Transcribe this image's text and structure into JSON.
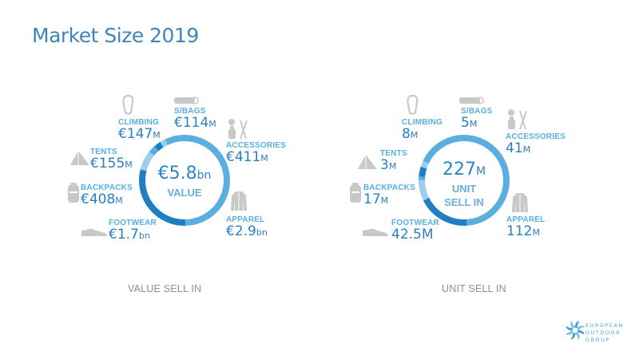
{
  "title": "Market Size 2019",
  "colors": {
    "dark": "#1f7fc2",
    "mid": "#5aaee0",
    "light": "#9fcdee",
    "icon": "#c8c8c8",
    "text": "#2a7fbf"
  },
  "chart_data": [
    {
      "type": "pie",
      "name": "value",
      "caption": "VALUE SELL IN",
      "center_value": "€5.8",
      "center_unit": "bn",
      "center_label": "VALUE",
      "unit": "€M",
      "total": 5800,
      "categories": [
        "APPAREL",
        "FOOTWEAR",
        "BACKPACKS",
        "TENTS",
        "CLIMBING",
        "S/BAGS",
        "ACCESSORIES"
      ],
      "values": [
        2900,
        1700,
        408,
        155,
        147,
        114,
        411
      ],
      "labels": [
        {
          "cat": "CLIMBING",
          "num": "€147",
          "unit": "M",
          "icon": "carabiner-icon"
        },
        {
          "cat": "S/BAGS",
          "num": "€114",
          "unit": "M",
          "icon": "sleeping-bag-icon"
        },
        {
          "cat": "ACCESSORIES",
          "num": "€411",
          "unit": "M",
          "icon": "accessories-icon"
        },
        {
          "cat": "TENTS",
          "num": "€155",
          "unit": "M",
          "icon": "tent-icon"
        },
        {
          "cat": "BACKPACKS",
          "num": "€408",
          "unit": "M",
          "icon": "backpack-icon"
        },
        {
          "cat": "FOOTWEAR",
          "num": "€1.7",
          "unit": "bn",
          "icon": "shoe-icon"
        },
        {
          "cat": "APPAREL",
          "num": "€2.9",
          "unit": "bn",
          "icon": "jacket-icon"
        }
      ]
    },
    {
      "type": "pie",
      "name": "unit",
      "caption": "UNIT SELL IN",
      "center_value": "227",
      "center_unit": "M",
      "center_label": "UNIT",
      "center_label2": "SELL IN",
      "unit": "M units",
      "total": 227,
      "categories": [
        "APPAREL",
        "FOOTWEAR",
        "BACKPACKS",
        "TENTS",
        "CLIMBING",
        "S/BAGS",
        "ACCESSORIES"
      ],
      "values": [
        112,
        42.5,
        17,
        3,
        8,
        5,
        41
      ],
      "labels": [
        {
          "cat": "CLIMBING",
          "num": "8",
          "unit": "M",
          "icon": "carabiner-icon"
        },
        {
          "cat": "S/BAGS",
          "num": "5",
          "unit": "M",
          "icon": "sleeping-bag-icon"
        },
        {
          "cat": "ACCESSORIES",
          "num": "41",
          "unit": "M",
          "icon": "accessories-icon"
        },
        {
          "cat": "TENTS",
          "num": "3",
          "unit": "M",
          "icon": "tent-icon"
        },
        {
          "cat": "BACKPACKS",
          "num": "17",
          "unit": "M",
          "icon": "backpack-icon"
        },
        {
          "cat": "FOOTWEAR",
          "num": "42.5M",
          "unit": "",
          "icon": "shoe-icon"
        },
        {
          "cat": "APPAREL",
          "num": "112",
          "unit": "M",
          "icon": "jacket-icon"
        }
      ]
    }
  ],
  "logo": {
    "line1": "EUROPEAN",
    "line2": "OUTDOOR",
    "line3": "GROUP"
  }
}
